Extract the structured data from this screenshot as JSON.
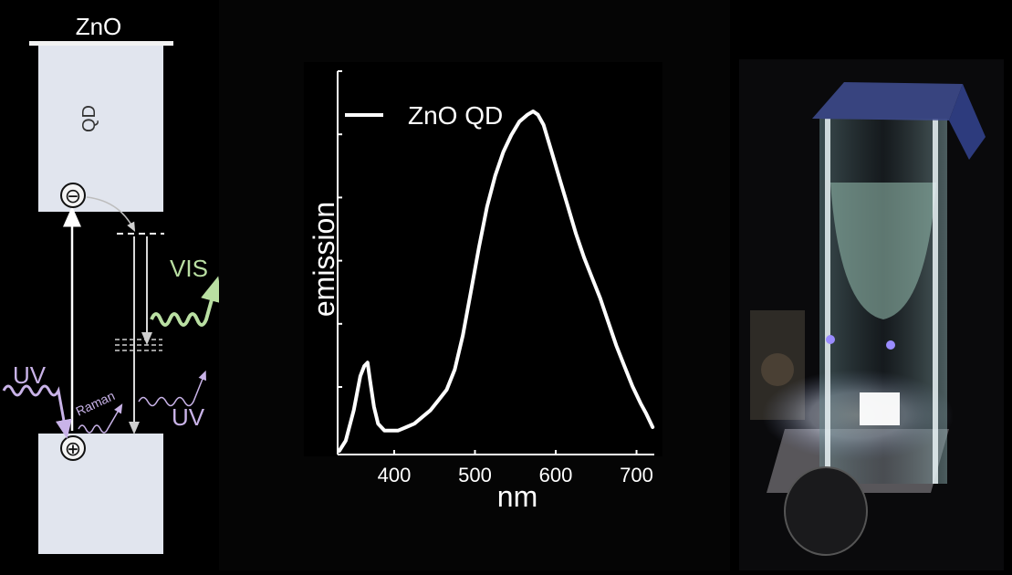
{
  "diagram": {
    "title": "ZnO",
    "qd_label": "QD",
    "electron_symbol": "⊖",
    "hole_symbol": "⊕",
    "uv_in_label": "UV",
    "raman_label": "Raman",
    "uv_out_label": "UV",
    "vis_label": "VIS",
    "colors": {
      "band": "#e1e5ee",
      "vis": "#b9dfa2",
      "uv": "#c9b3e8",
      "arrow": "#ffffff"
    }
  },
  "chart_data": {
    "type": "line",
    "xlabel": "nm",
    "ylabel": "emission",
    "x_ticks": [
      400,
      500,
      600,
      700
    ],
    "xlim": [
      330,
      722
    ],
    "ylim": [
      0,
      1.0
    ],
    "yaxis_ticks_unlabeled": 6,
    "legend_position": "top-left",
    "series": [
      {
        "name": "ZnO QD",
        "color": "#ffffff",
        "x": [
          332,
          340,
          350,
          358,
          363,
          367,
          370,
          375,
          380,
          388,
          395,
          405,
          415,
          425,
          435,
          445,
          455,
          465,
          475,
          485,
          495,
          505,
          515,
          525,
          535,
          545,
          555,
          565,
          572,
          578,
          585,
          595,
          605,
          615,
          625,
          635,
          645,
          655,
          665,
          675,
          685,
          695,
          705,
          712,
          720
        ],
        "y": [
          0.0,
          0.03,
          0.12,
          0.22,
          0.25,
          0.26,
          0.21,
          0.13,
          0.08,
          0.06,
          0.06,
          0.06,
          0.07,
          0.08,
          0.1,
          0.12,
          0.15,
          0.18,
          0.24,
          0.34,
          0.47,
          0.6,
          0.72,
          0.81,
          0.88,
          0.93,
          0.97,
          0.99,
          1.0,
          0.99,
          0.96,
          0.88,
          0.8,
          0.72,
          0.64,
          0.57,
          0.51,
          0.45,
          0.38,
          0.31,
          0.25,
          0.19,
          0.14,
          0.11,
          0.07
        ]
      }
    ]
  },
  "photo": {
    "image": "cuvette-photo"
  }
}
